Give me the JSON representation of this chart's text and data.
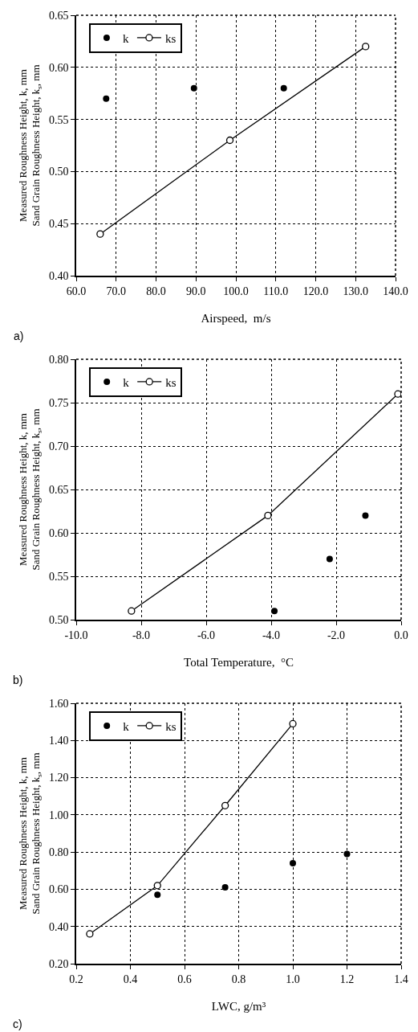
{
  "chart_data": [
    {
      "type": "scatter",
      "xlabel": "Airspeed,  m/s",
      "ylabel": "Measured Roughness Height, k, mm\nSand Grain Roughness Height, k$_{s}$, mm",
      "annotations": [
        "a)"
      ],
      "xlim": [
        60,
        140
      ],
      "ylim": [
        0.4,
        0.65
      ],
      "xticks": [
        {
          "value": 60,
          "label": "60.0"
        },
        {
          "value": 70,
          "label": "70.0"
        },
        {
          "value": 80,
          "label": "80.0"
        },
        {
          "value": 90,
          "label": "90.0"
        },
        {
          "value": 100,
          "label": "100.0"
        },
        {
          "value": 110,
          "label": "110.0"
        },
        {
          "value": 120,
          "label": "120.0"
        },
        {
          "value": 130,
          "label": "130.0"
        },
        {
          "value": 140,
          "label": "140.0"
        }
      ],
      "yticks": [
        {
          "value": 0.4,
          "label": "0.40"
        },
        {
          "value": 0.45,
          "label": "0.45"
        },
        {
          "value": 0.5,
          "label": "0.50"
        },
        {
          "value": 0.55,
          "label": "0.55"
        },
        {
          "value": 0.6,
          "label": "0.60"
        },
        {
          "value": 0.65,
          "label": "0.65"
        }
      ],
      "grid": true,
      "legend": "top left",
      "marker": "circle",
      "series": [
        {
          "name": "k",
          "type": "scatter",
          "color": "#000000",
          "x": [
            67.5,
            89.5,
            112
          ],
          "values": [
            0.57,
            0.58,
            0.58
          ]
        },
        {
          "name": "ks",
          "type": "line",
          "color": "#000000",
          "x": [
            66,
            98.5,
            132.5
          ],
          "values": [
            0.44,
            0.53,
            0.62
          ]
        }
      ]
    },
    {
      "type": "scatter",
      "xlabel": "Total Temperature,  °C",
      "ylabel": "Measured Roughness Height, k, mm\nSand Grain Roughness Height, k$_{s}$, mm",
      "annotations": [
        "b)"
      ],
      "xlim": [
        -10,
        0
      ],
      "ylim": [
        0.5,
        0.8
      ],
      "xticks": [
        {
          "value": -10,
          "label": "-10.0"
        },
        {
          "value": -8,
          "label": "-8.0"
        },
        {
          "value": -6,
          "label": "-6.0"
        },
        {
          "value": -4,
          "label": "-4.0"
        },
        {
          "value": -2,
          "label": "-2.0"
        },
        {
          "value": 0,
          "label": "0.0"
        }
      ],
      "yticks": [
        {
          "value": 0.5,
          "label": "0.50"
        },
        {
          "value": 0.55,
          "label": "0.55"
        },
        {
          "value": 0.6,
          "label": "0.60"
        },
        {
          "value": 0.65,
          "label": "0.65"
        },
        {
          "value": 0.7,
          "label": "0.70"
        },
        {
          "value": 0.75,
          "label": "0.75"
        },
        {
          "value": 0.8,
          "label": "0.80"
        }
      ],
      "grid": true,
      "legend": "top left",
      "marker": "circle",
      "series": [
        {
          "name": "k",
          "type": "scatter",
          "color": "#000000",
          "x": [
            -3.9,
            -2.2,
            -1.1
          ],
          "values": [
            0.51,
            0.57,
            0.62
          ]
        },
        {
          "name": "ks",
          "type": "line",
          "color": "#000000",
          "x": [
            -8.3,
            -4.1,
            -0.1
          ],
          "values": [
            0.51,
            0.62,
            0.76
          ]
        }
      ]
    },
    {
      "type": "scatter",
      "xlabel": "LWC, g/m³",
      "ylabel": "Measured Roughness Height, k, mm\nSand Grain Roughness Height, k$_{s}$, mm",
      "annotations": [
        "c)"
      ],
      "xlim": [
        0.2,
        1.4
      ],
      "ylim": [
        0.2,
        1.6
      ],
      "xticks": [
        {
          "value": 0.2,
          "label": "0.2"
        },
        {
          "value": 0.4,
          "label": "0.4"
        },
        {
          "value": 0.6,
          "label": "0.6"
        },
        {
          "value": 0.8,
          "label": "0.8"
        },
        {
          "value": 1.0,
          "label": "1.0"
        },
        {
          "value": 1.2,
          "label": "1.2"
        },
        {
          "value": 1.4,
          "label": "1.4"
        }
      ],
      "yticks": [
        {
          "value": 0.2,
          "label": "0.20"
        },
        {
          "value": 0.4,
          "label": "0.40"
        },
        {
          "value": 0.6,
          "label": "0.60"
        },
        {
          "value": 0.8,
          "label": "0.80"
        },
        {
          "value": 1.0,
          "label": "1.00"
        },
        {
          "value": 1.2,
          "label": "1.20"
        },
        {
          "value": 1.4,
          "label": "1.40"
        },
        {
          "value": 1.6,
          "label": "1.60"
        }
      ],
      "grid": true,
      "legend": "top left",
      "marker": "circle",
      "series": [
        {
          "name": "k",
          "type": "scatter",
          "color": "#000000",
          "x": [
            0.5,
            0.75,
            1.0,
            1.2
          ],
          "values": [
            0.57,
            0.61,
            0.74,
            0.79
          ]
        },
        {
          "name": "ks",
          "type": "line",
          "color": "#000000",
          "x": [
            0.25,
            0.5,
            0.75,
            1.0
          ],
          "values": [
            0.36,
            0.62,
            1.05,
            1.49
          ]
        }
      ]
    }
  ]
}
